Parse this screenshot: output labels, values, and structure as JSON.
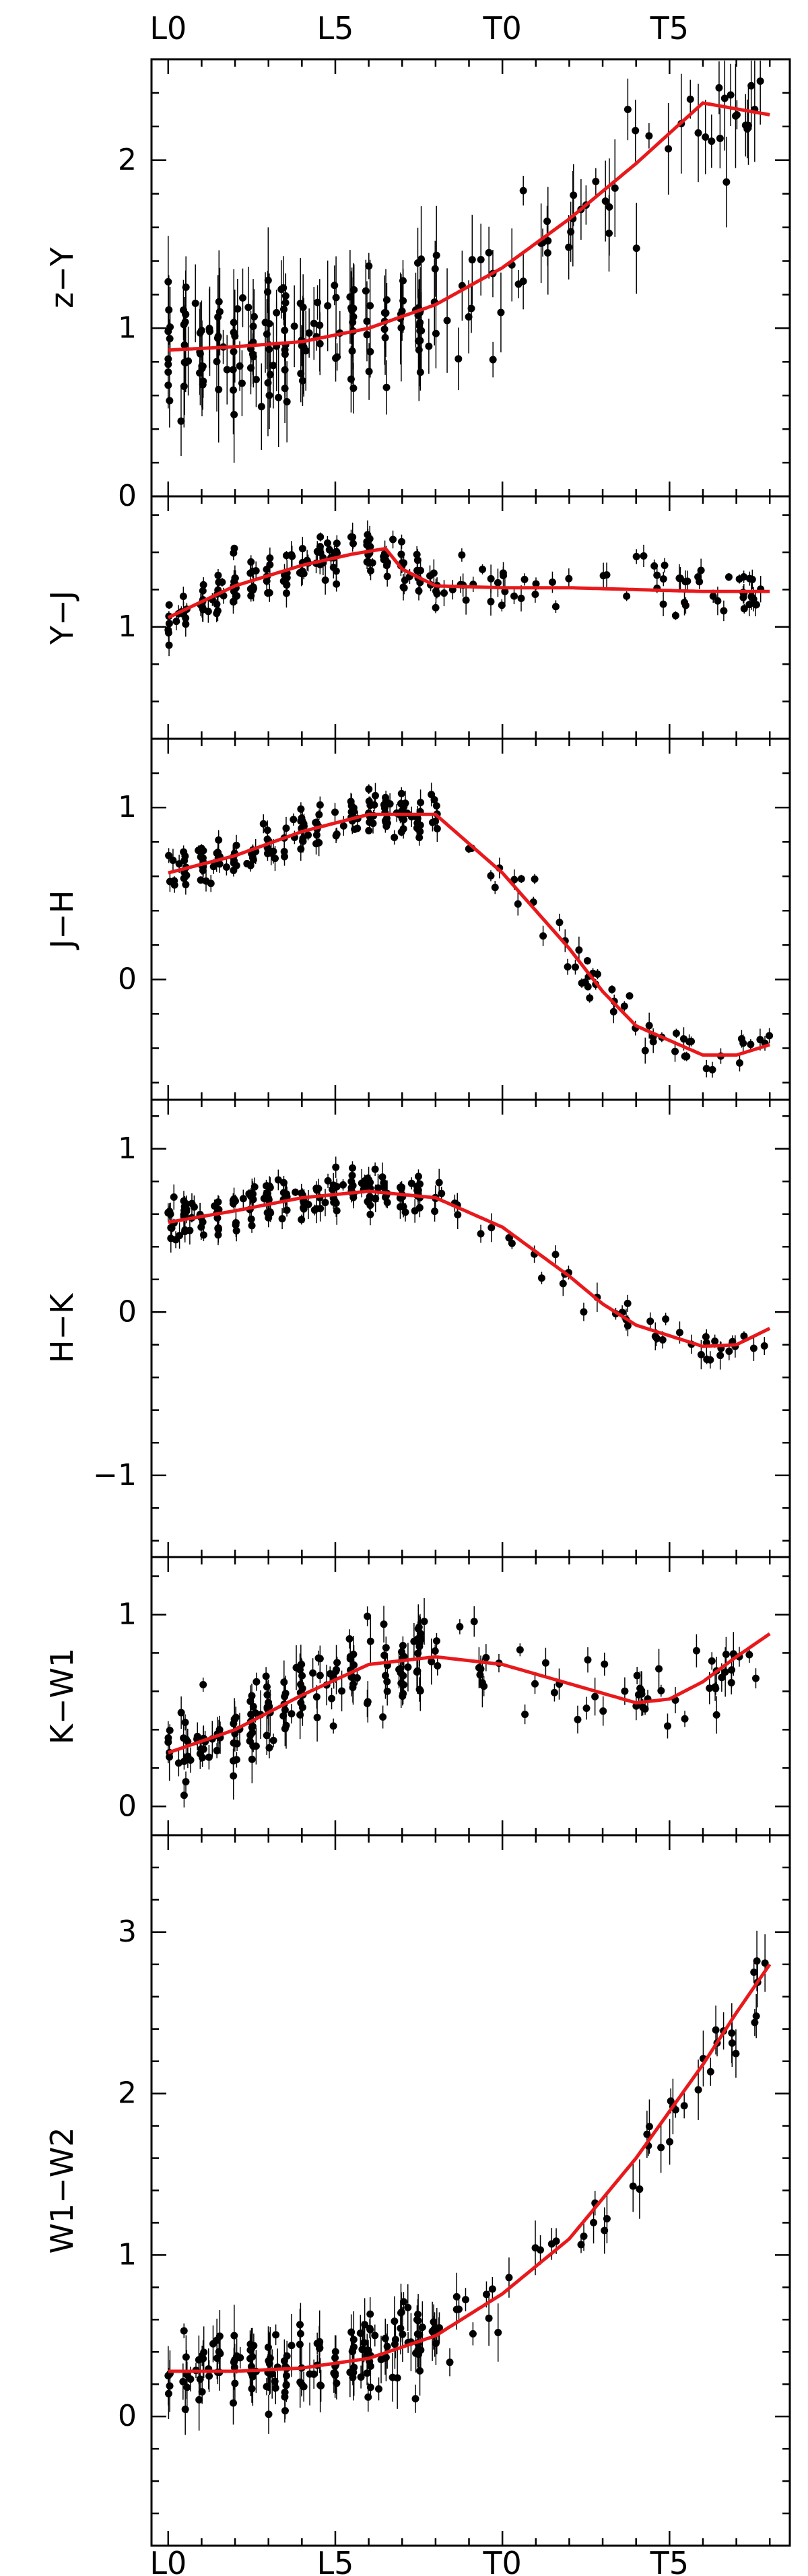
{
  "chart_data": [
    {
      "type": "scatter",
      "ylabel": "z−Y",
      "ylim": [
        0,
        2.6
      ],
      "yticks": [
        0,
        1,
        2
      ],
      "fit": [
        [
          0,
          0.87
        ],
        [
          2,
          0.89
        ],
        [
          4,
          0.92
        ],
        [
          6,
          1.0
        ],
        [
          8,
          1.14
        ],
        [
          10,
          1.36
        ],
        [
          12,
          1.65
        ],
        [
          14,
          1.98
        ],
        [
          16,
          2.34
        ],
        [
          18,
          2.27
        ]
      ],
      "cloud": {
        "center": [
          [
            0,
            0.87
          ],
          [
            2,
            0.89
          ],
          [
            4,
            0.92
          ],
          [
            6,
            1.0
          ],
          [
            8,
            1.14
          ],
          [
            10,
            1.36
          ],
          [
            12,
            1.65
          ],
          [
            14,
            1.98
          ],
          [
            16,
            2.2
          ],
          [
            18,
            2.3
          ]
        ],
        "spread": 0.35,
        "err": 0.25,
        "xmin": 0,
        "xmax": 18
      }
    },
    {
      "type": "scatter",
      "ylabel": "Y−J",
      "ylim": [
        0.4,
        1.7
      ],
      "yticks": [
        1
      ],
      "ytick_labels_extra": [],
      "fit": [
        [
          0,
          1.05
        ],
        [
          2,
          1.22
        ],
        [
          4,
          1.33
        ],
        [
          5.5,
          1.39
        ],
        [
          6.5,
          1.42
        ],
        [
          7,
          1.31
        ],
        [
          8,
          1.22
        ],
        [
          10,
          1.21
        ],
        [
          12,
          1.21
        ],
        [
          14,
          1.2
        ],
        [
          16,
          1.19
        ],
        [
          18,
          1.19
        ]
      ],
      "cloud": {
        "center": [
          [
            0,
            1.05
          ],
          [
            2,
            1.22
          ],
          [
            4,
            1.33
          ],
          [
            6,
            1.42
          ],
          [
            7,
            1.31
          ],
          [
            8,
            1.22
          ],
          [
            10,
            1.21
          ],
          [
            12,
            1.21
          ],
          [
            14,
            1.22
          ],
          [
            16,
            1.19
          ],
          [
            18,
            1.19
          ]
        ],
        "spread": 0.14,
        "err": 0.06,
        "xmin": 0,
        "xmax": 18
      }
    },
    {
      "type": "scatter",
      "ylabel": "J−H",
      "ylim": [
        -0.7,
        1.4
      ],
      "yticks": [
        0,
        1
      ],
      "fit": [
        [
          0,
          0.62
        ],
        [
          2,
          0.72
        ],
        [
          4,
          0.86
        ],
        [
          6,
          0.96
        ],
        [
          8,
          0.96
        ],
        [
          10,
          0.62
        ],
        [
          12,
          0.18
        ],
        [
          13,
          -0.07
        ],
        [
          14,
          -0.27
        ],
        [
          16,
          -0.44
        ],
        [
          17,
          -0.44
        ],
        [
          18,
          -0.38
        ]
      ],
      "cloud": {
        "center": [
          [
            0,
            0.62
          ],
          [
            2,
            0.72
          ],
          [
            4,
            0.86
          ],
          [
            6,
            0.96
          ],
          [
            8,
            0.96
          ],
          [
            10,
            0.62
          ],
          [
            12,
            0.18
          ],
          [
            13,
            -0.07
          ],
          [
            14,
            -0.27
          ],
          [
            16,
            -0.44
          ],
          [
            18,
            -0.38
          ]
        ],
        "spread": 0.12,
        "err": 0.06,
        "xmin": 0,
        "xmax": 18
      }
    },
    {
      "type": "scatter",
      "ylabel": "H−K",
      "ylim": [
        -1.5,
        1.3
      ],
      "yticks": [
        -1,
        0,
        1
      ],
      "fit": [
        [
          0,
          0.55
        ],
        [
          2,
          0.62
        ],
        [
          4,
          0.7
        ],
        [
          6,
          0.74
        ],
        [
          8,
          0.7
        ],
        [
          10,
          0.52
        ],
        [
          12,
          0.22
        ],
        [
          13,
          0.05
        ],
        [
          14,
          -0.08
        ],
        [
          16,
          -0.21
        ],
        [
          17,
          -0.2
        ],
        [
          18,
          -0.1
        ]
      ],
      "cloud": {
        "center": [
          [
            0,
            0.55
          ],
          [
            2,
            0.62
          ],
          [
            4,
            0.7
          ],
          [
            6,
            0.76
          ],
          [
            8,
            0.7
          ],
          [
            10,
            0.52
          ],
          [
            12,
            0.22
          ],
          [
            14,
            -0.08
          ],
          [
            16,
            -0.21
          ],
          [
            18,
            -0.2
          ]
        ],
        "spread": 0.13,
        "err": 0.07,
        "xmin": 0,
        "xmax": 18
      }
    },
    {
      "type": "scatter",
      "ylabel": "K−W1",
      "ylim": [
        -0.15,
        1.3
      ],
      "yticks": [
        0,
        1
      ],
      "fit": [
        [
          0,
          0.28
        ],
        [
          2,
          0.4
        ],
        [
          4,
          0.58
        ],
        [
          6,
          0.74
        ],
        [
          8,
          0.78
        ],
        [
          10,
          0.74
        ],
        [
          12,
          0.64
        ],
        [
          14,
          0.54
        ],
        [
          15,
          0.56
        ],
        [
          16,
          0.65
        ],
        [
          17,
          0.78
        ],
        [
          18,
          0.9
        ]
      ],
      "cloud": {
        "center": [
          [
            0,
            0.28
          ],
          [
            2,
            0.4
          ],
          [
            4,
            0.58
          ],
          [
            6,
            0.74
          ],
          [
            8,
            0.8
          ],
          [
            10,
            0.74
          ],
          [
            12,
            0.64
          ],
          [
            14,
            0.54
          ],
          [
            16,
            0.65
          ],
          [
            18,
            0.9
          ]
        ],
        "spread": 0.2,
        "err": 0.1,
        "xmin": 0,
        "xmax": 18
      }
    },
    {
      "type": "scatter",
      "ylabel": "W1−W2",
      "ylim": [
        -0.8,
        3.6
      ],
      "yticks": [
        0,
        1,
        2,
        3
      ],
      "fit": [
        [
          0,
          0.28
        ],
        [
          2,
          0.28
        ],
        [
          4,
          0.3
        ],
        [
          6,
          0.36
        ],
        [
          8,
          0.5
        ],
        [
          10,
          0.76
        ],
        [
          12,
          1.1
        ],
        [
          14,
          1.6
        ],
        [
          16,
          2.18
        ],
        [
          17,
          2.5
        ],
        [
          18,
          2.8
        ]
      ],
      "cloud": {
        "center": [
          [
            0,
            0.28
          ],
          [
            2,
            0.28
          ],
          [
            4,
            0.3
          ],
          [
            6,
            0.36
          ],
          [
            8,
            0.5
          ],
          [
            10,
            0.76
          ],
          [
            12,
            1.1
          ],
          [
            14,
            1.6
          ],
          [
            16,
            2.18
          ],
          [
            18,
            2.8
          ]
        ],
        "spread": 0.22,
        "err": 0.15,
        "xmin": 0,
        "xmax": 18
      }
    }
  ],
  "xaxis": {
    "xlim": [
      -0.5,
      18.6
    ],
    "tick_labels": [
      {
        "x": 0,
        "label": "L0"
      },
      {
        "x": 5,
        "label": "L5"
      },
      {
        "x": 10,
        "label": "T0"
      },
      {
        "x": 15,
        "label": "T5"
      }
    ]
  },
  "colors": {
    "fit": "#e8191c",
    "points": "#000000",
    "axes": "#000000"
  }
}
